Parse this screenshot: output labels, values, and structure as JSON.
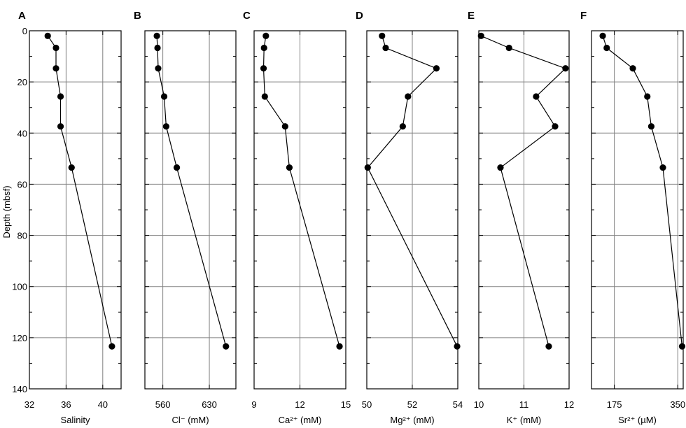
{
  "figure": {
    "y_axis_label": "Depth  (mbsf)",
    "y_ticks": [
      "0",
      "20",
      "40",
      "60",
      "80",
      "100",
      "120",
      "140"
    ]
  },
  "chart_data": [
    {
      "type": "line",
      "panel": "A",
      "xlabel": "Salinity",
      "ylabel": "Depth  (mbsf)",
      "xlim": [
        32,
        42
      ],
      "ylim": [
        140,
        0
      ],
      "x_ticks": [
        "32",
        "36",
        "40"
      ],
      "x_tick_values": [
        32,
        36,
        40
      ],
      "grid": true,
      "points": [
        {
          "x": 34.0,
          "y": 2
        },
        {
          "x": 34.9,
          "y": 6.7
        },
        {
          "x": 34.9,
          "y": 14.7
        },
        {
          "x": 35.4,
          "y": 25.7
        },
        {
          "x": 35.4,
          "y": 37.4
        },
        {
          "x": 36.6,
          "y": 53.5
        },
        {
          "x": 41.0,
          "y": 123.4
        }
      ]
    },
    {
      "type": "line",
      "panel": "B",
      "xlabel": "Cl⁻ (mM)",
      "ylabel": "Depth  (mbsf)",
      "xlim": [
        533,
        670
      ],
      "ylim": [
        140,
        0
      ],
      "x_ticks": [
        "560",
        "630"
      ],
      "x_tick_values": [
        560,
        630
      ],
      "grid": true,
      "points": [
        {
          "x": 551,
          "y": 2
        },
        {
          "x": 552,
          "y": 6.7
        },
        {
          "x": 553,
          "y": 14.7
        },
        {
          "x": 562,
          "y": 25.7
        },
        {
          "x": 565,
          "y": 37.4
        },
        {
          "x": 581,
          "y": 53.5
        },
        {
          "x": 655,
          "y": 123.4
        }
      ]
    },
    {
      "type": "line",
      "panel": "C",
      "xlabel": "Ca²⁺ (mM)",
      "ylabel": "Depth  (mbsf)",
      "xlim": [
        9,
        15
      ],
      "ylim": [
        140,
        0
      ],
      "x_ticks": [
        "9",
        "12",
        "15"
      ],
      "x_tick_values": [
        9,
        12,
        15
      ],
      "grid": true,
      "points": [
        {
          "x": 9.77,
          "y": 2
        },
        {
          "x": 9.65,
          "y": 6.7
        },
        {
          "x": 9.62,
          "y": 14.7
        },
        {
          "x": 9.7,
          "y": 25.7
        },
        {
          "x": 11.03,
          "y": 37.4
        },
        {
          "x": 11.31,
          "y": 53.5
        },
        {
          "x": 14.59,
          "y": 123.4
        }
      ]
    },
    {
      "type": "line",
      "panel": "D",
      "xlabel": "Mg²⁺ (mM)",
      "ylabel": "Depth  (mbsf)",
      "xlim": [
        50,
        54
      ],
      "ylim": [
        140,
        0
      ],
      "x_ticks": [
        "50",
        "52",
        "54"
      ],
      "x_tick_values": [
        50,
        52,
        54
      ],
      "grid": true,
      "points": [
        {
          "x": 50.67,
          "y": 2
        },
        {
          "x": 50.83,
          "y": 6.7
        },
        {
          "x": 53.06,
          "y": 14.7
        },
        {
          "x": 51.81,
          "y": 25.7
        },
        {
          "x": 51.58,
          "y": 37.4
        },
        {
          "x": 50.04,
          "y": 53.5
        },
        {
          "x": 53.97,
          "y": 123.4
        }
      ]
    },
    {
      "type": "line",
      "panel": "E",
      "xlabel": "K⁺ (mM)",
      "ylabel": "Depth  (mbsf)",
      "xlim": [
        10,
        12
      ],
      "ylim": [
        140,
        0
      ],
      "x_ticks": [
        "10",
        "11",
        "12"
      ],
      "x_tick_values": [
        10,
        11,
        12
      ],
      "grid": true,
      "points": [
        {
          "x": 10.05,
          "y": 2
        },
        {
          "x": 10.67,
          "y": 6.7
        },
        {
          "x": 11.92,
          "y": 14.7
        },
        {
          "x": 11.27,
          "y": 25.7
        },
        {
          "x": 11.69,
          "y": 37.4
        },
        {
          "x": 10.48,
          "y": 53.5
        },
        {
          "x": 11.55,
          "y": 123.4
        }
      ]
    },
    {
      "type": "line",
      "panel": "F",
      "xlabel": "Sr²⁺ (µM)",
      "ylabel": "Depth  (mbsf)",
      "xlim": [
        112,
        365
      ],
      "ylim": [
        140,
        0
      ],
      "x_ticks": [
        "175",
        "350"
      ],
      "x_tick_values": [
        175,
        350
      ],
      "grid": true,
      "points": [
        {
          "x": 143,
          "y": 2
        },
        {
          "x": 154,
          "y": 6.7
        },
        {
          "x": 226,
          "y": 14.7
        },
        {
          "x": 266,
          "y": 25.7
        },
        {
          "x": 277,
          "y": 37.4
        },
        {
          "x": 309,
          "y": 53.5
        },
        {
          "x": 362,
          "y": 123.4
        }
      ]
    }
  ]
}
